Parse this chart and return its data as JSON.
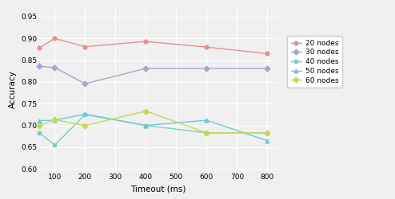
{
  "title": "",
  "xlabel": "Timeout (ms)",
  "ylabel": "Accuracy",
  "xlim": [
    50,
    830
  ],
  "ylim": [
    0.595,
    0.97
  ],
  "yticks": [
    0.6,
    0.65,
    0.7,
    0.75,
    0.8,
    0.85,
    0.9,
    0.95
  ],
  "xticks": [
    100,
    200,
    300,
    400,
    500,
    600,
    700,
    800
  ],
  "series": [
    {
      "label": "20 nodes",
      "color": "#e89090",
      "marker": "o",
      "x": [
        50,
        100,
        200,
        400,
        600,
        800
      ],
      "y": [
        0.878,
        0.9,
        0.881,
        0.893,
        0.88,
        0.865
      ]
    },
    {
      "label": "30 nodes",
      "color": "#a0a8cc",
      "marker": "D",
      "x": [
        50,
        100,
        200,
        400,
        600,
        800
      ],
      "y": [
        0.836,
        0.833,
        0.796,
        0.831,
        0.831,
        0.831
      ]
    },
    {
      "label": "40 nodes",
      "color": "#7ecec0",
      "marker": "s",
      "x": [
        50,
        100,
        200,
        400,
        600,
        800
      ],
      "y": [
        0.683,
        0.655,
        0.725,
        0.7,
        0.683,
        0.683
      ]
    },
    {
      "label": "50 nodes",
      "color": "#70c8d8",
      "marker": "^",
      "x": [
        50,
        100,
        200,
        400,
        600,
        800
      ],
      "y": [
        0.711,
        0.712,
        0.726,
        0.7,
        0.712,
        0.665
      ]
    },
    {
      "label": "60 nodes",
      "color": "#c8d855",
      "marker": "D",
      "x": [
        50,
        100,
        200,
        400,
        600,
        800
      ],
      "y": [
        0.7,
        0.713,
        0.7,
        0.733,
        0.683,
        0.683
      ]
    }
  ],
  "background_color": "#f0f0f0",
  "grid_color": "#ffffff",
  "markersize": 3.5,
  "linewidth": 1.0,
  "tick_fontsize": 6.5,
  "label_fontsize": 7.5,
  "legend_fontsize": 6.5
}
